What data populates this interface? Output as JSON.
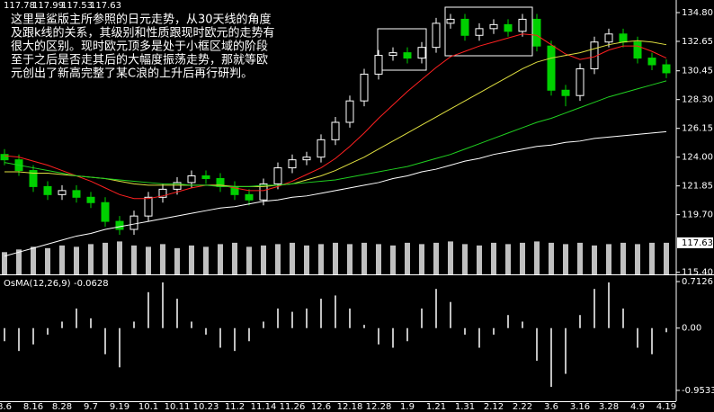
{
  "chart_data": [
    {
      "type": "candlestick",
      "header": [
        117.78,
        117.99,
        117.53,
        117.63
      ],
      "annotation": [
        "这里是鲨版主所参照的日元走势，从30天线的角度",
        "及跟k线的关系，其级别和性质跟现时欧元的走势有",
        "很大的区别。现时欧元顶多是处于小框区域的阶段",
        "至于之后是否走其后的大幅度振荡走势，那就等欧",
        "元创出了新高完整了某C浪的上升后再行研判。"
      ],
      "categories": [
        "8.6",
        null,
        "8.16",
        null,
        "8.28",
        null,
        "9.7",
        null,
        "9.19",
        null,
        "10.1",
        null,
        "10.11",
        null,
        "10.23",
        null,
        "11.2",
        null,
        "11.14",
        null,
        "11.26",
        null,
        "12.6",
        null,
        "12.18",
        null,
        "12.28",
        null,
        "1.9",
        null,
        "1.21",
        null,
        "1.31",
        null,
        "2.12",
        null,
        "2.22",
        null,
        "3.6",
        null,
        "3.16",
        null,
        "3.28",
        null,
        "4.9",
        null,
        "4.19"
      ],
      "open": [
        124.2,
        123.8,
        123.0,
        121.8,
        121.2,
        121.5,
        121.0,
        120.6,
        119.2,
        118.6,
        119.6,
        121.0,
        121.6,
        122.1,
        122.6,
        122.4,
        121.8,
        121.2,
        120.8,
        122.0,
        123.2,
        123.8,
        124.0,
        125.3,
        126.6,
        128.2,
        130.2,
        131.6,
        131.8,
        131.4,
        132.2,
        134.0,
        134.3,
        133.1,
        133.6,
        133.9,
        133.4,
        134.3,
        132.3,
        129.0,
        128.6,
        130.6,
        132.6,
        133.2,
        132.6,
        131.4,
        130.9
      ],
      "high": [
        124.6,
        124.2,
        123.4,
        122.2,
        121.9,
        121.9,
        121.4,
        121.0,
        119.6,
        120.0,
        121.4,
        122.0,
        122.5,
        123.0,
        123.0,
        122.8,
        122.2,
        121.6,
        122.4,
        123.6,
        124.2,
        124.4,
        125.7,
        127.0,
        128.6,
        130.6,
        132.0,
        132.2,
        132.2,
        132.6,
        134.4,
        134.7,
        134.7,
        134.0,
        134.3,
        134.3,
        134.7,
        134.7,
        132.7,
        129.4,
        131.0,
        133.0,
        133.6,
        133.6,
        133.0,
        131.8,
        131.3
      ],
      "low": [
        123.4,
        122.6,
        121.4,
        120.8,
        120.8,
        120.6,
        120.2,
        118.8,
        118.2,
        118.2,
        119.2,
        120.6,
        121.2,
        121.7,
        122.0,
        121.4,
        120.8,
        120.4,
        120.4,
        121.6,
        122.8,
        123.4,
        123.6,
        124.9,
        126.2,
        127.8,
        129.8,
        131.2,
        131.0,
        131.0,
        131.8,
        133.6,
        132.7,
        132.7,
        133.2,
        133.0,
        133.0,
        131.9,
        128.6,
        127.8,
        128.2,
        130.2,
        132.2,
        132.2,
        131.0,
        130.5,
        129.9
      ],
      "close": [
        123.8,
        123.0,
        121.8,
        121.2,
        121.5,
        121.0,
        120.6,
        119.2,
        118.6,
        119.6,
        121.0,
        121.6,
        122.1,
        122.6,
        122.4,
        121.8,
        121.2,
        120.8,
        122.0,
        123.2,
        123.8,
        124.0,
        125.3,
        126.6,
        128.2,
        130.2,
        131.6,
        131.8,
        131.4,
        132.2,
        134.0,
        134.3,
        133.1,
        133.6,
        133.9,
        133.4,
        134.3,
        132.3,
        129.0,
        128.6,
        130.6,
        132.6,
        133.2,
        132.6,
        131.4,
        130.9,
        130.3
      ],
      "up_color": "#ffffff",
      "down_color": "#00d000",
      "series": [
        {
          "color": "#ff2020",
          "values": [
            124.1,
            124.0,
            123.7,
            123.4,
            123.0,
            122.6,
            122.2,
            121.7,
            121.2,
            120.9,
            120.9,
            121.1,
            121.4,
            121.7,
            121.9,
            121.9,
            121.7,
            121.5,
            121.5,
            121.8,
            122.2,
            122.7,
            123.2,
            123.9,
            124.8,
            125.8,
            126.9,
            127.9,
            128.9,
            129.8,
            130.7,
            131.5,
            131.9,
            132.3,
            132.6,
            132.9,
            133.2,
            133.1,
            132.4,
            131.7,
            131.3,
            131.5,
            132.0,
            132.3,
            132.3,
            131.9,
            131.4
          ]
        },
        {
          "color": "#e0e040",
          "values": [
            122.9,
            122.9,
            122.8,
            122.8,
            122.7,
            122.6,
            122.5,
            122.4,
            122.2,
            122.0,
            121.9,
            121.9,
            121.9,
            121.9,
            121.9,
            121.9,
            121.8,
            121.8,
            121.8,
            121.9,
            122.0,
            122.3,
            122.6,
            123.0,
            123.5,
            124.0,
            124.6,
            125.2,
            125.8,
            126.4,
            127.0,
            127.6,
            128.2,
            128.8,
            129.4,
            130.0,
            130.6,
            131.1,
            131.4,
            131.6,
            131.8,
            132.1,
            132.4,
            132.6,
            132.7,
            132.6,
            132.4
          ]
        },
        {
          "color": "#20d020",
          "values": [
            123.6,
            123.4,
            123.2,
            123.0,
            122.8,
            122.6,
            122.5,
            122.4,
            122.3,
            122.2,
            122.1,
            122.0,
            122.0,
            121.9,
            121.9,
            121.8,
            121.8,
            121.8,
            121.9,
            121.9,
            122.0,
            122.1,
            122.2,
            122.3,
            122.5,
            122.7,
            122.9,
            123.1,
            123.3,
            123.6,
            123.9,
            124.2,
            124.6,
            125.0,
            125.4,
            125.8,
            126.2,
            126.6,
            126.9,
            127.3,
            127.7,
            128.1,
            128.5,
            128.8,
            129.1,
            129.4,
            129.7
          ]
        },
        {
          "color": "#ffffff",
          "values": [
            116.6,
            116.9,
            117.2,
            117.5,
            117.8,
            118.1,
            118.3,
            118.6,
            118.8,
            119.0,
            119.2,
            119.4,
            119.6,
            119.8,
            120.0,
            120.2,
            120.3,
            120.5,
            120.7,
            120.8,
            121.0,
            121.1,
            121.3,
            121.5,
            121.7,
            121.9,
            122.1,
            122.4,
            122.6,
            122.9,
            123.1,
            123.4,
            123.7,
            123.9,
            124.2,
            124.4,
            124.6,
            124.8,
            124.9,
            125.1,
            125.2,
            125.4,
            125.5,
            125.6,
            125.7,
            125.8,
            125.9
          ]
        }
      ],
      "volume": {
        "color": "#c0c0c0",
        "values": [
          116.9,
          117.1,
          117.3,
          117.2,
          117.4,
          117.3,
          117.5,
          117.6,
          117.7,
          117.4,
          117.3,
          117.5,
          117.2,
          117.4,
          117.3,
          117.5,
          117.6,
          117.3,
          117.4,
          117.5,
          117.6,
          117.4,
          117.5,
          117.6,
          117.5,
          117.6,
          117.5,
          117.4,
          117.6,
          117.5,
          117.6,
          117.7,
          117.5,
          117.4,
          117.6,
          117.5,
          117.6,
          117.7,
          117.6,
          117.5,
          117.6,
          117.4,
          117.5,
          117.6,
          117.5,
          117.6,
          117.6
        ]
      },
      "ylim": [
        115.24,
        135.74
      ],
      "yticks": [
        {
          "value": 134.8,
          "label": "134.80"
        },
        {
          "value": 132.65,
          "label": "132.65"
        },
        {
          "value": 130.45,
          "label": "130.45"
        },
        {
          "value": 128.3,
          "label": "128.30"
        },
        {
          "value": 126.15,
          "label": "126.15"
        },
        {
          "value": 124.0,
          "label": "124.00"
        },
        {
          "value": 121.85,
          "label": "121.85"
        },
        {
          "value": 119.7,
          "label": "119.70"
        },
        {
          "value": 115.4,
          "label": "115.40"
        }
      ]
    },
    {
      "type": "bar",
      "name": "OsMA(12,26,9)",
      "color": "#c0c0c0",
      "values": [
        -0.2,
        -0.35,
        -0.25,
        -0.1,
        0.1,
        0.3,
        0.15,
        -0.4,
        -0.6,
        0.1,
        0.55,
        0.7,
        0.45,
        0.1,
        -0.1,
        -0.3,
        -0.35,
        -0.2,
        0.1,
        0.3,
        0.25,
        0.3,
        0.45,
        0.5,
        0.3,
        0.05,
        -0.25,
        -0.3,
        -0.2,
        0.3,
        0.6,
        0.4,
        -0.1,
        -0.3,
        -0.1,
        0.2,
        0.1,
        -0.5,
        -0.9,
        -0.7,
        0.2,
        0.6,
        0.7,
        0.3,
        -0.3,
        -0.4,
        -0.0628
      ],
      "ylim": [
        -1.119,
        0.809
      ],
      "yticks": [
        0.7126,
        {
          "value": 0,
          "label": "0.00"
        },
        -0.9533
      ]
    }
  ]
}
